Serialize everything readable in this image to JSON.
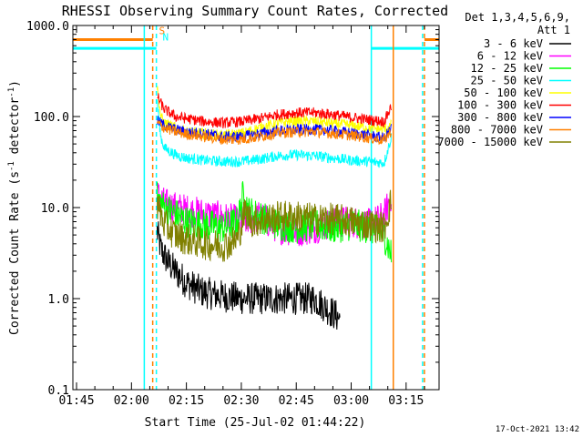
{
  "chart_data": {
    "type": "line",
    "title": "RHESSI Observing Summary Count Rates, Corrected",
    "xlabel": "Start Time (25-Jul-02 01:44:22)",
    "ylabel_main": "Corrected Count Rate (s",
    "ylabel_exp1": "-1",
    "ylabel_mid": " detector",
    "ylabel_exp2": "-1",
    "ylabel_end": ")",
    "yscale": "log",
    "ylim": [
      0.1,
      1000
    ],
    "xlim_minutes": [
      -1,
      99
    ],
    "x_tick_labels": [
      "01:45",
      "02:00",
      "02:15",
      "02:30",
      "02:45",
      "03:00",
      "03:15"
    ],
    "x_tick_minutes": [
      0,
      15,
      30,
      45,
      60,
      75,
      90
    ],
    "y_ticks": [
      0.1,
      1,
      10,
      100,
      1000
    ],
    "y_tick_labels": [
      "0.1",
      "1.0",
      "10.0",
      "100.0",
      "1000.0"
    ],
    "legend": {
      "header1": "Det 1,3,4,5,6,9,",
      "header2": "Att 1",
      "placement": "top-right outside"
    },
    "series": [
      {
        "name": "3 - 6 keV",
        "color": "#000000",
        "points": [
          [
            22,
            5.5
          ],
          [
            23,
            3.5
          ],
          [
            25,
            2.5
          ],
          [
            27,
            2.0
          ],
          [
            30,
            1.5
          ],
          [
            34,
            1.2
          ],
          [
            38,
            1.1
          ],
          [
            45,
            1.0
          ],
          [
            55,
            1.0
          ],
          [
            65,
            1.0
          ],
          [
            72,
            0.6
          ]
        ]
      },
      {
        "name": "6 - 12 keV",
        "color": "#ff00ff",
        "points": [
          [
            22,
            14
          ],
          [
            24,
            11
          ],
          [
            27,
            10
          ],
          [
            32,
            9
          ],
          [
            38,
            8
          ],
          [
            45,
            7
          ],
          [
            50,
            8
          ],
          [
            55,
            6
          ],
          [
            60,
            5.5
          ],
          [
            65,
            6
          ],
          [
            70,
            7
          ],
          [
            75,
            7
          ],
          [
            80,
            6.5
          ],
          [
            84,
            8
          ],
          [
            86,
            14
          ]
        ]
      },
      {
        "name": "12 - 25 keV",
        "color": "#00ff00",
        "points": [
          [
            22,
            13
          ],
          [
            24,
            10
          ],
          [
            27,
            8.5
          ],
          [
            30,
            7
          ],
          [
            35,
            6.5
          ],
          [
            40,
            6
          ],
          [
            44,
            7
          ],
          [
            45.5,
            14
          ],
          [
            47,
            9
          ],
          [
            50,
            8
          ],
          [
            55,
            6.5
          ],
          [
            60,
            6
          ],
          [
            65,
            6.5
          ],
          [
            70,
            6
          ],
          [
            75,
            6.5
          ],
          [
            80,
            6
          ],
          [
            84,
            5
          ],
          [
            86,
            3
          ]
        ]
      },
      {
        "name": "25 - 50 keV",
        "color": "#00ffff",
        "points": [
          [
            22,
            150
          ],
          [
            23,
            60
          ],
          [
            24,
            45
          ],
          [
            27,
            38
          ],
          [
            30,
            35
          ],
          [
            35,
            33
          ],
          [
            40,
            32
          ],
          [
            45,
            32
          ],
          [
            50,
            34
          ],
          [
            55,
            37
          ],
          [
            60,
            38
          ],
          [
            65,
            37
          ],
          [
            70,
            35
          ],
          [
            75,
            33
          ],
          [
            80,
            32
          ],
          [
            84,
            31
          ],
          [
            86,
            60
          ]
        ]
      },
      {
        "name": "50 - 100 keV",
        "color": "#ffff00",
        "points": [
          [
            22,
            220
          ],
          [
            23,
            100
          ],
          [
            24,
            85
          ],
          [
            27,
            75
          ],
          [
            30,
            68
          ],
          [
            35,
            65
          ],
          [
            40,
            62
          ],
          [
            45,
            65
          ],
          [
            50,
            75
          ],
          [
            55,
            85
          ],
          [
            60,
            90
          ],
          [
            65,
            88
          ],
          [
            70,
            84
          ],
          [
            75,
            80
          ],
          [
            80,
            75
          ],
          [
            84,
            72
          ],
          [
            86,
            80
          ]
        ]
      },
      {
        "name": "100 - 300 keV",
        "color": "#ff0000",
        "points": [
          [
            22,
            170
          ],
          [
            23,
            140
          ],
          [
            24,
            120
          ],
          [
            27,
            100
          ],
          [
            30,
            95
          ],
          [
            35,
            88
          ],
          [
            40,
            85
          ],
          [
            45,
            88
          ],
          [
            50,
            95
          ],
          [
            55,
            105
          ],
          [
            60,
            110
          ],
          [
            65,
            110
          ],
          [
            70,
            105
          ],
          [
            75,
            98
          ],
          [
            80,
            92
          ],
          [
            84,
            88
          ],
          [
            86,
            130
          ]
        ]
      },
      {
        "name": "300 - 800 keV",
        "color": "#0000ff",
        "points": [
          [
            22,
            90
          ],
          [
            24,
            80
          ],
          [
            27,
            72
          ],
          [
            30,
            68
          ],
          [
            35,
            65
          ],
          [
            40,
            60
          ],
          [
            45,
            60
          ],
          [
            50,
            65
          ],
          [
            55,
            70
          ],
          [
            60,
            72
          ],
          [
            65,
            72
          ],
          [
            70,
            70
          ],
          [
            75,
            66
          ],
          [
            80,
            62
          ],
          [
            84,
            58
          ],
          [
            86,
            75
          ]
        ]
      },
      {
        "name": "800 - 7000 keV",
        "color": "#ff8000",
        "points": [
          [
            22,
            85
          ],
          [
            24,
            75
          ],
          [
            27,
            68
          ],
          [
            30,
            64
          ],
          [
            35,
            60
          ],
          [
            40,
            56
          ],
          [
            45,
            56
          ],
          [
            50,
            60
          ],
          [
            55,
            66
          ],
          [
            60,
            68
          ],
          [
            65,
            68
          ],
          [
            70,
            65
          ],
          [
            75,
            62
          ],
          [
            80,
            58
          ],
          [
            84,
            55
          ],
          [
            86,
            70
          ]
        ]
      },
      {
        "name": "7000 - 15000 keV",
        "color": "#808000",
        "points": [
          [
            22,
            11
          ],
          [
            24,
            6.5
          ],
          [
            27,
            5
          ],
          [
            30,
            4.5
          ],
          [
            35,
            4
          ],
          [
            40,
            3.8
          ],
          [
            44,
            4.5
          ],
          [
            46,
            9
          ],
          [
            48,
            7
          ],
          [
            52,
            7.5
          ],
          [
            56,
            8
          ],
          [
            60,
            8
          ],
          [
            65,
            7.5
          ],
          [
            70,
            7.5
          ],
          [
            75,
            7
          ],
          [
            80,
            6.5
          ],
          [
            84,
            6
          ],
          [
            86,
            12
          ]
        ]
      }
    ],
    "annotations": [
      {
        "label": "S",
        "color": "#ff8000",
        "minute": 22.5,
        "value": 800
      },
      {
        "label": "N",
        "color": "#00ffff",
        "minute": 23.5,
        "value": 680
      }
    ],
    "vertical_lines": [
      {
        "minute": 18.5,
        "color": "#00ffff",
        "style": "solid"
      },
      {
        "minute": 20.8,
        "color": "#ff8000",
        "style": "dashed"
      },
      {
        "minute": 21.8,
        "color": "#00ffff",
        "style": "dashed"
      },
      {
        "minute": 80.5,
        "color": "#00ffff",
        "style": "solid"
      },
      {
        "minute": 86.5,
        "color": "#ff8000",
        "style": "solid"
      },
      {
        "minute": 94.5,
        "color": "#00ffff",
        "style": "dashed"
      },
      {
        "minute": 95.0,
        "color": "#ff8000",
        "style": "dashed"
      }
    ],
    "flag_bars": [
      {
        "color": "#ff8000",
        "value": 700,
        "from": -1,
        "to": 20.8
      },
      {
        "color": "#00ffff",
        "value": 560,
        "from": -1,
        "to": 21.8
      },
      {
        "color": "#ff8000",
        "value": 700,
        "from": 95.0,
        "to": 99
      },
      {
        "color": "#00ffff",
        "value": 560,
        "from": 80.5,
        "to": 99
      }
    ],
    "footer_date": "17-Oct-2021 13:42"
  }
}
